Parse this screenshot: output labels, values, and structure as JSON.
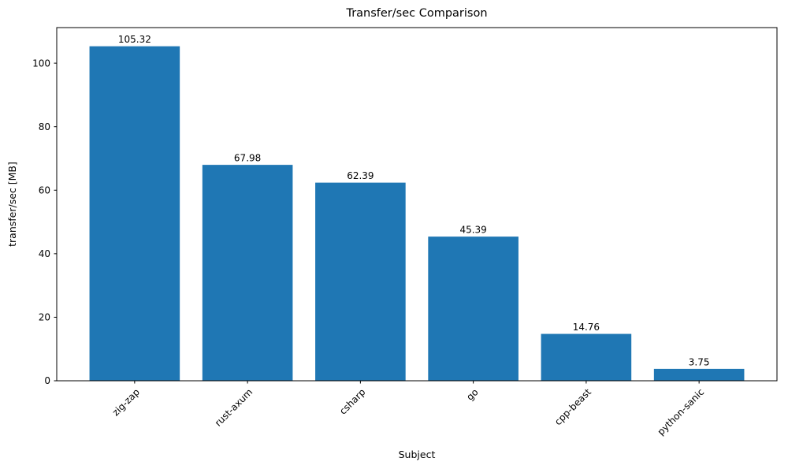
{
  "chart_data": {
    "type": "bar",
    "title": "Transfer/sec Comparison",
    "xlabel": "Subject",
    "ylabel": "transfer/sec [MB]",
    "categories": [
      "zig-zap",
      "rust-axum",
      "csharp",
      "go",
      "cpp-beast",
      "python-sanic"
    ],
    "values": [
      105.32,
      67.98,
      62.39,
      45.39,
      14.76,
      3.75
    ],
    "value_labels": [
      "105.32",
      "67.98",
      "62.39",
      "45.39",
      "14.76",
      "3.75"
    ],
    "yticks": [
      0,
      20,
      40,
      60,
      80,
      100
    ],
    "ylim": [
      0,
      111.2
    ],
    "x_tick_rotation_deg": 45,
    "grid": false,
    "legend": null,
    "bar_color": "#1f77b4",
    "axis_color": "#000000",
    "background_color": "#ffffff"
  }
}
